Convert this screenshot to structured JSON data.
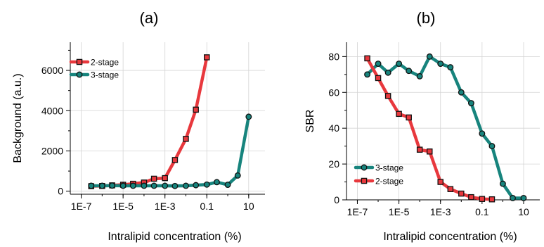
{
  "chart_data": [
    {
      "type": "line",
      "panel_label": "(a)",
      "title": "",
      "xlabel": "Intralipid concentration (%)",
      "ylabel": "Background (a.u.)",
      "xscale": "log",
      "xlim": [
        3e-08,
        60
      ],
      "ylim": [
        -150,
        7400
      ],
      "xticks": [
        "1E-7",
        "1E-5",
        "1E-3",
        "0.1",
        "10"
      ],
      "yticks": [
        "0",
        "2000",
        "4000",
        "6000"
      ],
      "grid": true,
      "legend_position": "top-left",
      "series": [
        {
          "name": "2-stage",
          "color": "#e8383d",
          "marker": "square",
          "x": [
            3e-07,
            1e-06,
            3e-06,
            1e-05,
            3e-05,
            0.0001,
            0.0003,
            0.001,
            0.003,
            0.01,
            0.03,
            0.1
          ],
          "y": [
            250,
            260,
            290,
            320,
            370,
            430,
            620,
            650,
            1550,
            2600,
            4050,
            6650
          ]
        },
        {
          "name": "3-stage",
          "color": "#17847d",
          "marker": "circle",
          "x": [
            3e-07,
            1e-06,
            3e-06,
            1e-05,
            3e-05,
            0.0001,
            0.0003,
            0.001,
            0.003,
            0.01,
            0.03,
            0.1,
            0.3,
            1,
            3,
            10
          ],
          "y": [
            270,
            270,
            280,
            270,
            270,
            270,
            270,
            270,
            260,
            270,
            300,
            330,
            450,
            320,
            780,
            3700
          ]
        }
      ]
    },
    {
      "type": "line",
      "panel_label": "(b)",
      "title": "",
      "xlabel": "Intralipid concentration (%)",
      "ylabel": "SBR",
      "xscale": "log",
      "xlim": [
        3e-08,
        60
      ],
      "ylim": [
        0,
        88
      ],
      "xticks": [
        "1E-7",
        "1E-5",
        "1E-3",
        "0.1",
        "10"
      ],
      "yticks": [
        "0",
        "20",
        "40",
        "60",
        "80"
      ],
      "grid": true,
      "legend_position": "bottom-left",
      "series": [
        {
          "name": "3-stage",
          "color": "#17847d",
          "marker": "circle",
          "x": [
            3e-07,
            1e-06,
            3e-06,
            1e-05,
            3e-05,
            0.0001,
            0.0003,
            0.001,
            0.003,
            0.01,
            0.03,
            0.1,
            0.3,
            1,
            3,
            10
          ],
          "y": [
            70,
            76,
            71,
            76,
            72,
            69,
            80,
            76,
            74,
            60,
            54,
            37,
            30,
            9,
            1,
            1
          ]
        },
        {
          "name": "2-stage",
          "color": "#e8383d",
          "marker": "square",
          "x": [
            3e-07,
            1e-06,
            3e-06,
            1e-05,
            3e-05,
            0.0001,
            0.0003,
            0.001,
            0.003,
            0.01,
            0.03,
            0.1,
            0.3
          ],
          "y": [
            79,
            68,
            58,
            48,
            46,
            28,
            27,
            10,
            6,
            3.5,
            1.5,
            0.5,
            0.3
          ]
        }
      ]
    }
  ]
}
